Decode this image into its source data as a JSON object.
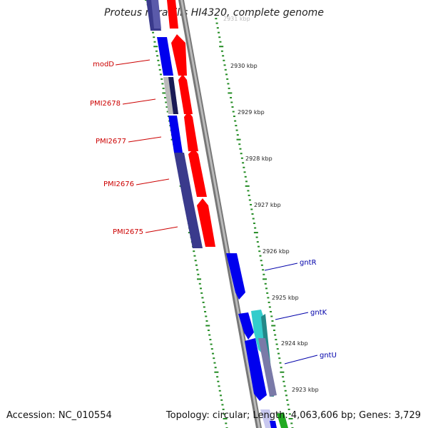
{
  "title": "Proteus mirabilis HI4320, complete genome",
  "footer": {
    "accession": "Accession: NC_010554",
    "topology": "Topology: circular; Length: 4,063,606 bp; Genes: 3,729"
  },
  "colors": {
    "forward_gene": "#ff0000",
    "reverse_gene_dark": "#3a3a8c",
    "reverse_gene_blue": "#0000ee",
    "cyan_gene": "#33cccc",
    "backbone": "#888888",
    "tick": "#228b22",
    "left_label": "#cc0000",
    "right_label": "#0000aa"
  },
  "scale_labels": [
    "2931 kbp",
    "2930 kbp",
    "2929 kbp",
    "2928 kbp",
    "2927 kbp",
    "2926 kbp",
    "2925 kbp",
    "2924 kbp",
    "2923 kbp"
  ],
  "left_genes": [
    "modD",
    "PMI2678",
    "PMI2677",
    "PMI2676",
    "PMI2675"
  ],
  "right_genes": [
    "gntR",
    "gntK",
    "gntU"
  ]
}
